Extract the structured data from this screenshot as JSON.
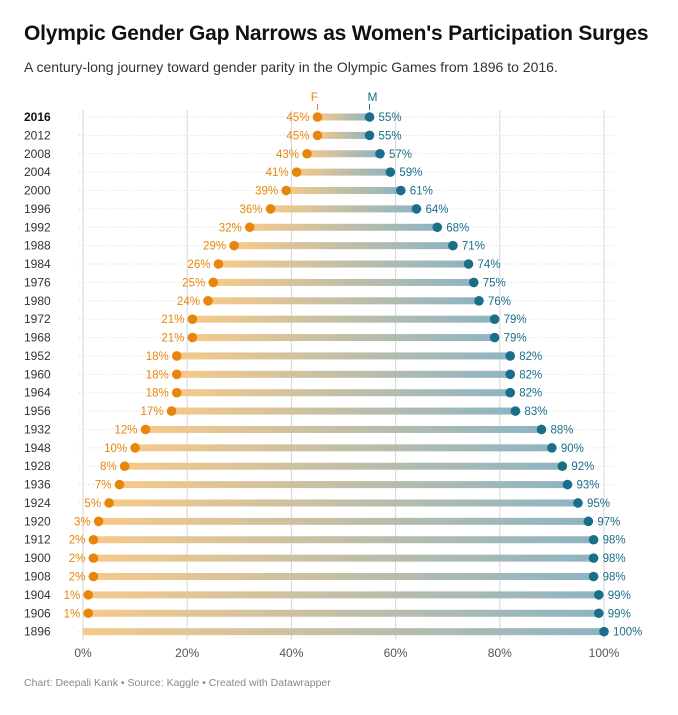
{
  "title": "Olympic Gender Gap Narrows as Women's Participation Surges",
  "subtitle": "A century-long journey toward gender parity in the Olympic Games from 1896 to 2016.",
  "footer": "Chart: Deepali Kank • Source: Kaggle • Created with Datawrapper",
  "colors": {
    "female": "#e8860c",
    "male": "#1b6e8a",
    "female_light": "#f6c98a",
    "male_light": "#8db4c3"
  },
  "chart_data": {
    "type": "dumbbell",
    "legend": {
      "female": "F",
      "male": "M"
    },
    "xlim": [
      0,
      100
    ],
    "x_ticks": [
      0,
      20,
      40,
      60,
      80,
      100
    ],
    "x_tick_labels": [
      "0%",
      "20%",
      "40%",
      "60%",
      "80%",
      "100%"
    ],
    "grid": true,
    "rows": [
      {
        "year": "2016",
        "female": 45,
        "male": 55,
        "female_label": "45%",
        "male_label": "55%"
      },
      {
        "year": "2012",
        "female": 45,
        "male": 55,
        "female_label": "45%",
        "male_label": "55%"
      },
      {
        "year": "2008",
        "female": 43,
        "male": 57,
        "female_label": "43%",
        "male_label": "57%"
      },
      {
        "year": "2004",
        "female": 41,
        "male": 59,
        "female_label": "41%",
        "male_label": "59%"
      },
      {
        "year": "2000",
        "female": 39,
        "male": 61,
        "female_label": "39%",
        "male_label": "61%"
      },
      {
        "year": "1996",
        "female": 36,
        "male": 64,
        "female_label": "36%",
        "male_label": "64%"
      },
      {
        "year": "1992",
        "female": 32,
        "male": 68,
        "female_label": "32%",
        "male_label": "68%"
      },
      {
        "year": "1988",
        "female": 29,
        "male": 71,
        "female_label": "29%",
        "male_label": "71%"
      },
      {
        "year": "1984",
        "female": 26,
        "male": 74,
        "female_label": "26%",
        "male_label": "74%"
      },
      {
        "year": "1976",
        "female": 25,
        "male": 75,
        "female_label": "25%",
        "male_label": "75%"
      },
      {
        "year": "1980",
        "female": 24,
        "male": 76,
        "female_label": "24%",
        "male_label": "76%"
      },
      {
        "year": "1972",
        "female": 21,
        "male": 79,
        "female_label": "21%",
        "male_label": "79%"
      },
      {
        "year": "1968",
        "female": 21,
        "male": 79,
        "female_label": "21%",
        "male_label": "79%"
      },
      {
        "year": "1952",
        "female": 18,
        "male": 82,
        "female_label": "18%",
        "male_label": "82%"
      },
      {
        "year": "1960",
        "female": 18,
        "male": 82,
        "female_label": "18%",
        "male_label": "82%"
      },
      {
        "year": "1964",
        "female": 18,
        "male": 82,
        "female_label": "18%",
        "male_label": "82%"
      },
      {
        "year": "1956",
        "female": 17,
        "male": 83,
        "female_label": "17%",
        "male_label": "83%"
      },
      {
        "year": "1932",
        "female": 12,
        "male": 88,
        "female_label": "12%",
        "male_label": "88%"
      },
      {
        "year": "1948",
        "female": 10,
        "male": 90,
        "female_label": "10%",
        "male_label": "90%"
      },
      {
        "year": "1928",
        "female": 8,
        "male": 92,
        "female_label": "8%",
        "male_label": "92%"
      },
      {
        "year": "1936",
        "female": 7,
        "male": 93,
        "female_label": "7%",
        "male_label": "93%"
      },
      {
        "year": "1924",
        "female": 5,
        "male": 95,
        "female_label": "5%",
        "male_label": "95%"
      },
      {
        "year": "1920",
        "female": 3,
        "male": 97,
        "female_label": "3%",
        "male_label": "97%"
      },
      {
        "year": "1912",
        "female": 2,
        "male": 98,
        "female_label": "2%",
        "male_label": "98%"
      },
      {
        "year": "1900",
        "female": 2,
        "male": 98,
        "female_label": "2%",
        "male_label": "98%"
      },
      {
        "year": "1908",
        "female": 2,
        "male": 98,
        "female_label": "2%",
        "male_label": "98%"
      },
      {
        "year": "1904",
        "female": 1,
        "male": 99,
        "female_label": "1%",
        "male_label": "99%"
      },
      {
        "year": "1906",
        "female": 1,
        "male": 99,
        "female_label": "1%",
        "male_label": "99%"
      },
      {
        "year": "1896",
        "female": 0,
        "male": 100,
        "female_label": "",
        "male_label": "100%"
      }
    ]
  }
}
